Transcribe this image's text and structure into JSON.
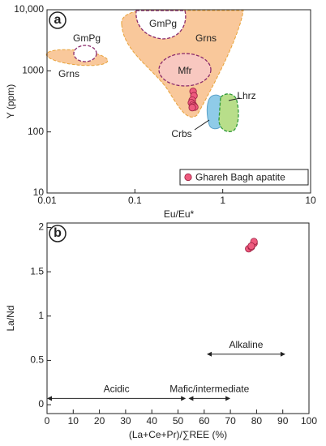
{
  "chart_data": [
    {
      "type": "scatter",
      "panel": "a",
      "xlabel": "Eu/Eu*",
      "ylabel": "Y (ppm)",
      "xscale": "log",
      "yscale": "log",
      "xlim": [
        0.01,
        10
      ],
      "ylim": [
        10,
        10000
      ],
      "xticks": [
        0.01,
        0.1,
        1,
        10
      ],
      "yticks": [
        10,
        100,
        1000,
        {
          "value": 10000,
          "label": "10,000"
        }
      ],
      "annotations": [
        "GmPg",
        "Grns",
        "GmPg",
        "Grns",
        "Mfr",
        "Lhrz",
        "Crbs"
      ],
      "legend": "lower right",
      "series": [
        {
          "name": "Ghareh Bagh apatite",
          "color": "#ee5a7e",
          "x": [
            0.46,
            0.47,
            0.45,
            0.44,
            0.46,
            0.47,
            0.48,
            0.45
          ],
          "values": [
            460,
            390,
            330,
            300,
            280,
            265,
            255,
            250
          ]
        }
      ]
    },
    {
      "type": "scatter",
      "panel": "b",
      "xlabel": "(La+Ce+Pr)/∑REE (%)",
      "ylabel": "La/Nd",
      "xlim": [
        0,
        100
      ],
      "ylim": [
        -0.1,
        2.05
      ],
      "xticks": [
        0,
        10,
        20,
        30,
        40,
        50,
        60,
        70,
        80,
        90,
        100
      ],
      "yticks": [
        0,
        0.5,
        1,
        1.5,
        2
      ],
      "ranges": [
        {
          "text": "Acidic",
          "xrange": [
            0,
            53
          ],
          "y": 0.07
        },
        {
          "text": "Mafic/intermediate",
          "xrange": [
            54,
            70
          ],
          "y": 0.07
        },
        {
          "text": "Alkaline",
          "xrange": [
            61,
            91
          ],
          "y": 0.57
        }
      ],
      "series": [
        {
          "color": "#ee5a7e",
          "x": [
            77,
            78,
            79,
            79,
            78
          ],
          "values": [
            1.76,
            1.78,
            1.82,
            1.84,
            1.79
          ]
        }
      ]
    }
  ]
}
